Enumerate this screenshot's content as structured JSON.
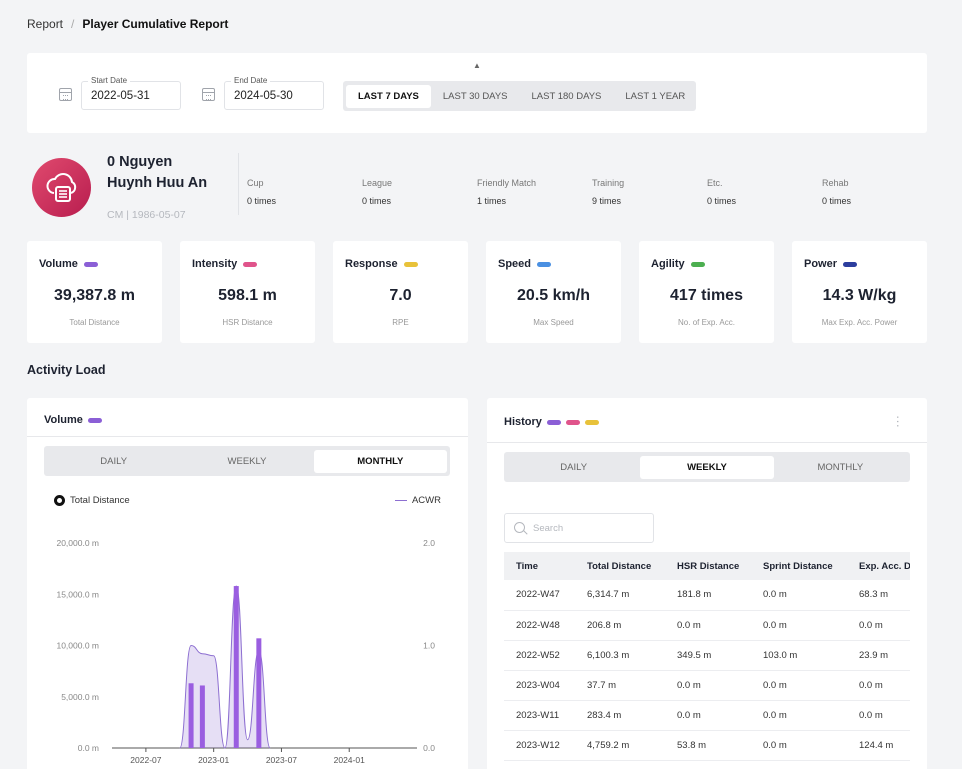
{
  "breadcrumb": {
    "root": "Report",
    "current": "Player Cumulative Report"
  },
  "filters": {
    "start_date_label": "Start Date",
    "start_date": "2022-05-31",
    "end_date_label": "End Date",
    "end_date": "2024-05-30",
    "ranges": [
      "LAST 7 DAYS",
      "LAST 30 DAYS",
      "LAST 180 DAYS",
      "LAST 1 YEAR"
    ],
    "active_range": "LAST 7 DAYS"
  },
  "player": {
    "name_line1": "0 Nguyen",
    "name_line2": "Huynh Huu An",
    "meta": "CM | 1986-05-07"
  },
  "counts": [
    {
      "label": "Cup",
      "value": "0 times"
    },
    {
      "label": "League",
      "value": "0 times"
    },
    {
      "label": "Friendly Match",
      "value": "1 times"
    },
    {
      "label": "Training",
      "value": "9 times"
    },
    {
      "label": "Etc.",
      "value": "0 times"
    },
    {
      "label": "Rehab",
      "value": "0 times"
    }
  ],
  "metrics": [
    {
      "name": "Volume",
      "color": "#8b5fd6",
      "value": "39,387.8 m",
      "sub": "Total Distance"
    },
    {
      "name": "Intensity",
      "color": "#e0548b",
      "value": "598.1 m",
      "sub": "HSR Distance"
    },
    {
      "name": "Response",
      "color": "#e8c23a",
      "value": "7.0",
      "sub": "RPE"
    },
    {
      "name": "Speed",
      "color": "#4a90e2",
      "value": "20.5 km/h",
      "sub": "Max Speed"
    },
    {
      "name": "Agility",
      "color": "#4caf50",
      "value": "417 times",
      "sub": "No. of Exp. Acc."
    },
    {
      "name": "Power",
      "color": "#2c3e9e",
      "value": "14.3 W/kg",
      "sub": "Max Exp. Acc. Power"
    }
  ],
  "activity_load": {
    "title": "Activity Load",
    "volume_panel": {
      "title": "Volume",
      "tabs": [
        "DAILY",
        "WEEKLY",
        "MONTHLY"
      ],
      "active_tab": "MONTHLY",
      "legend_total": "Total Distance",
      "legend_acwr": "ACWR"
    },
    "history_panel": {
      "title": "History",
      "tabs": [
        "DAILY",
        "WEEKLY",
        "MONTHLY"
      ],
      "active_tab": "WEEKLY",
      "search_placeholder": "Search",
      "columns": [
        "Time",
        "Total Distance",
        "HSR Distance",
        "Sprint Distance",
        "Exp. Acc. Distance"
      ],
      "rows": [
        [
          "2022-W47",
          "6,314.7 m",
          "181.8 m",
          "0.0 m",
          "68.3 m"
        ],
        [
          "2022-W48",
          "206.8 m",
          "0.0 m",
          "0.0 m",
          "0.0 m"
        ],
        [
          "2022-W52",
          "6,100.3 m",
          "349.5 m",
          "103.0 m",
          "23.9 m"
        ],
        [
          "2023-W04",
          "37.7 m",
          "0.0 m",
          "0.0 m",
          "0.0 m"
        ],
        [
          "2023-W11",
          "283.4 m",
          "0.0 m",
          "0.0 m",
          "0.0 m"
        ],
        [
          "2023-W12",
          "4,759.2 m",
          "53.8 m",
          "0.0 m",
          "124.4 m"
        ]
      ]
    }
  },
  "chart_data": {
    "type": "bar",
    "x_ticks": [
      "2022-07",
      "2023-01",
      "2023-07",
      "2024-01"
    ],
    "ylim": [
      0,
      20000
    ],
    "y_ticks": [
      "0.0 m",
      "5,000.0 m",
      "10,000.0 m",
      "15,000.0 m",
      "20,000.0 m"
    ],
    "y2lim": [
      0,
      2.0
    ],
    "y2_ticks": [
      "0.0",
      "1.0",
      "2.0"
    ],
    "series": [
      {
        "name": "Total Distance",
        "color": "#9a5ee0",
        "points": [
          {
            "x": "2022-11",
            "y": 6314.7
          },
          {
            "x": "2022-12",
            "y": 6100.3
          },
          {
            "x": "2023-03",
            "y": 15800
          },
          {
            "x": "2023-05",
            "y": 10700
          }
        ]
      },
      {
        "name": "ACWR",
        "type": "area",
        "color": "#8d6fd1",
        "points": [
          {
            "x": "2022-10",
            "y": 0
          },
          {
            "x": "2022-11",
            "y": 1.0
          },
          {
            "x": "2022-12",
            "y": 0.92
          },
          {
            "x": "2023-01",
            "y": 0.9
          },
          {
            "x": "2023-02",
            "y": 0
          },
          {
            "x": "2023-03",
            "y": 1.58
          },
          {
            "x": "2023-04",
            "y": 0.08
          },
          {
            "x": "2023-05",
            "y": 0.95
          },
          {
            "x": "2023-06",
            "y": 0
          }
        ]
      }
    ]
  }
}
